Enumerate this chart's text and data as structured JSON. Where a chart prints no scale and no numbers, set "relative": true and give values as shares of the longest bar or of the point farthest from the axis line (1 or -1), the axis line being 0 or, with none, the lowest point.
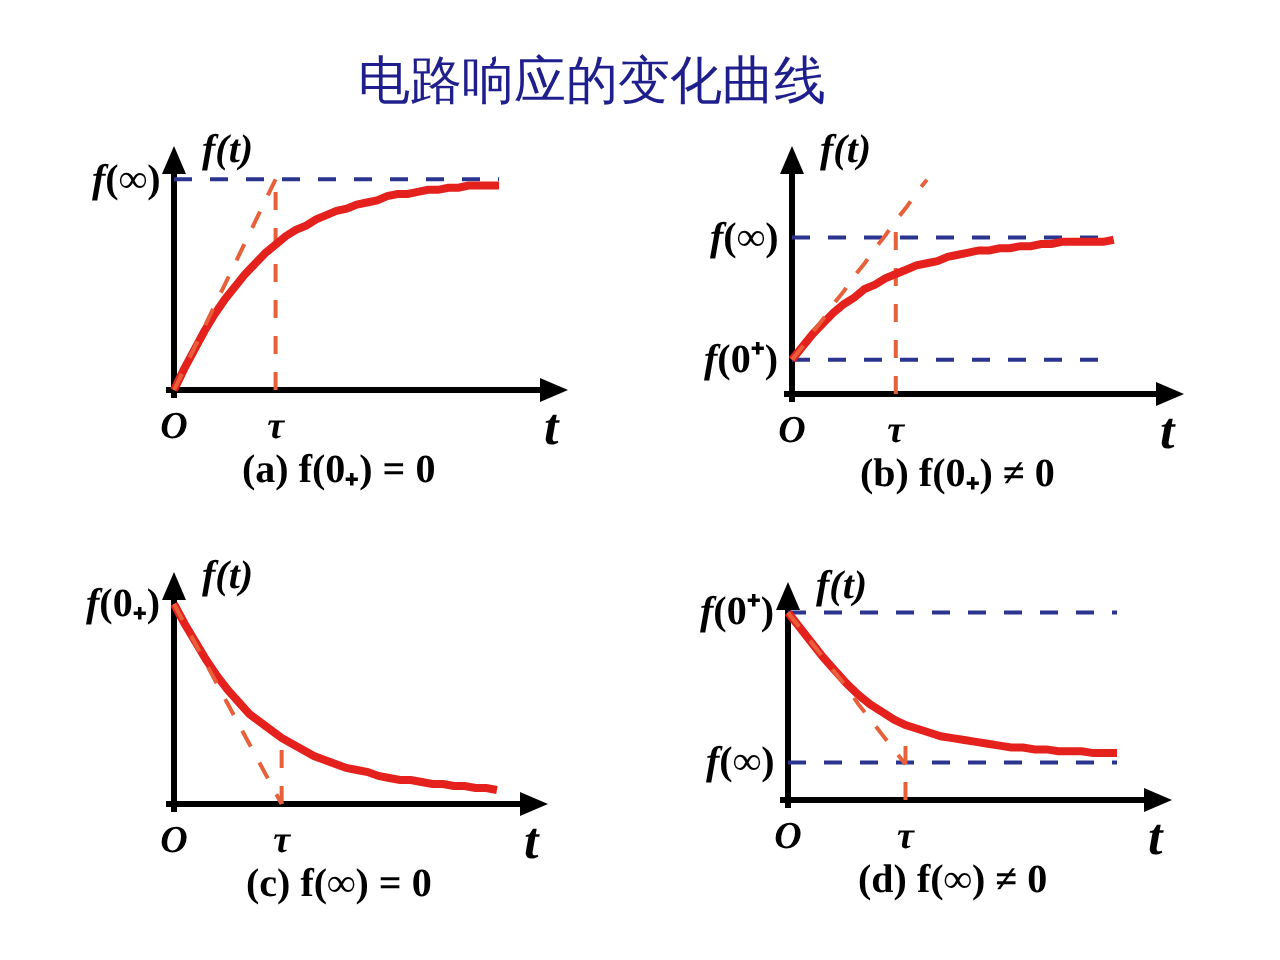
{
  "chart_data": [
    {
      "type": "line",
      "title": "电路响应的变化曲线",
      "xlabel": "t",
      "ylabel": "f(t)",
      "relative": true,
      "categories": [
        "O",
        null,
        null,
        null,
        null,
        null,
        null,
        null,
        null,
        null,
        "τ",
        null,
        null,
        null,
        null,
        null,
        null,
        null,
        null,
        null,
        null,
        null,
        null,
        null,
        null,
        null,
        null,
        null,
        null,
        null,
        null,
        null,
        null,
        null,
        null,
        null,
        null,
        null,
        null
      ],
      "series": [
        {
          "color": "#e4211c",
          "line_style": "solid",
          "values": [
            0,
            0.1,
            0.19,
            0.28,
            0.36,
            0.43,
            0.49,
            0.55,
            0.6,
            0.65,
            0.69,
            0.73,
            0.76,
            0.78,
            0.81,
            0.83,
            0.85,
            0.86,
            0.88,
            0.89,
            0.9,
            0.92,
            0.93,
            0.93,
            0.94,
            0.95,
            0.95,
            0.96,
            0.96,
            0.97,
            0.97,
            0.97,
            0.97,
            null,
            null,
            null,
            null,
            null,
            null
          ]
        },
        {
          "color": "#e8603a",
          "line_style": "dashed",
          "values": [
            0,
            0.1,
            0.2,
            0.3,
            0.4,
            0.5,
            0.6,
            0.7,
            0.8,
            0.9,
            1,
            null,
            null,
            null,
            null,
            null,
            null,
            null,
            null,
            null,
            null,
            null,
            null,
            null,
            null,
            null,
            null,
            null,
            null,
            null,
            null,
            null,
            null,
            null,
            null,
            null,
            null,
            null,
            null
          ]
        }
      ],
      "ref_lines": [
        {
          "axis": "y",
          "value": 1,
          "label": "f(∞)",
          "color": "#2b3590",
          "line_style": "dashed"
        },
        {
          "axis": "x",
          "value": "τ",
          "color": "#e8603a",
          "line_style": "dashed"
        }
      ],
      "annotations": [
        "(a) f(0₊) = 0"
      ]
    },
    {
      "type": "line",
      "xlabel": "t",
      "ylabel": "f(t)",
      "relative": true,
      "categories": [
        "O",
        null,
        null,
        null,
        null,
        null,
        null,
        null,
        null,
        null,
        "τ",
        null,
        null,
        null,
        null,
        null,
        null,
        null,
        null,
        null,
        null,
        null,
        null,
        null,
        null,
        null,
        null,
        null,
        null,
        null,
        null,
        null,
        null,
        null,
        null,
        null,
        null,
        null
      ],
      "series": [
        {
          "color": "#e4211c",
          "line_style": "solid",
          "values": [
            0.16,
            0.22,
            0.28,
            0.33,
            0.38,
            0.42,
            0.45,
            0.49,
            0.51,
            0.54,
            0.56,
            0.58,
            0.6,
            0.61,
            0.62,
            0.64,
            0.65,
            0.66,
            0.67,
            0.67,
            0.68,
            0.68,
            0.69,
            0.69,
            0.7,
            0.7,
            0.71,
            0.71,
            0.71,
            0.71,
            0.71,
            0.72,
            null,
            null,
            null,
            null,
            null,
            null
          ]
        },
        {
          "color": "#e8603a",
          "line_style": "dashed",
          "values": [
            0.16,
            0.22,
            0.29,
            0.35,
            0.42,
            0.48,
            0.55,
            0.61,
            0.68,
            0.74,
            0.81,
            0.87,
            0.94,
            1,
            null,
            null,
            null,
            null,
            null,
            null,
            null,
            null,
            null,
            null,
            null,
            null,
            null,
            null,
            null,
            null,
            null,
            null,
            null,
            null,
            null,
            null,
            null,
            null
          ]
        }
      ],
      "ref_lines": [
        {
          "axis": "y",
          "value": 0.73,
          "label": "f(∞)",
          "color": "#2b3590",
          "line_style": "dashed"
        },
        {
          "axis": "y",
          "value": 0.16,
          "label": "f(0⁺)",
          "color": "#2b3590",
          "line_style": "dashed"
        },
        {
          "axis": "x",
          "value": "τ",
          "color": "#e8603a",
          "line_style": "dashed"
        }
      ],
      "annotations": [
        "(b) f(0₊) ≠ 0"
      ]
    },
    {
      "type": "line",
      "xlabel": "t",
      "ylabel": "f(t)",
      "relative": true,
      "categories": [
        "O",
        null,
        null,
        null,
        null,
        null,
        null,
        null,
        null,
        null,
        "τ",
        null,
        null,
        null,
        null,
        null,
        null,
        null,
        null,
        null,
        null,
        null,
        null,
        null,
        null,
        null,
        null,
        null,
        null,
        null,
        null,
        null,
        null,
        null,
        null
      ],
      "series": [
        {
          "color": "#e4211c",
          "line_style": "solid",
          "values": [
            1,
            0.9,
            0.81,
            0.72,
            0.64,
            0.57,
            0.51,
            0.45,
            0.41,
            0.37,
            0.33,
            0.3,
            0.27,
            0.24,
            0.22,
            0.2,
            0.18,
            0.17,
            0.16,
            0.14,
            0.13,
            0.12,
            0.12,
            0.11,
            0.1,
            0.1,
            0.09,
            0.09,
            0.08,
            0.08,
            0.07,
            null,
            null,
            null,
            null
          ]
        },
        {
          "color": "#e8603a",
          "line_style": "dashed",
          "values": [
            1,
            0.9,
            0.8,
            0.7,
            0.6,
            0.5,
            0.4,
            0.3,
            0.2,
            0.1,
            0,
            null,
            null,
            null,
            null,
            null,
            null,
            null,
            null,
            null,
            null,
            null,
            null,
            null,
            null,
            null,
            null,
            null,
            null,
            null,
            null,
            null,
            null,
            null,
            null
          ]
        }
      ],
      "ref_lines": [
        {
          "axis": "x",
          "value": "τ",
          "color": "#e8603a",
          "line_style": "dashed"
        }
      ],
      "annotations": [
        {
          "text": "f(0₊)",
          "x": "O",
          "y": 1
        },
        "(c) f(∞) = 0"
      ]
    },
    {
      "type": "line",
      "xlabel": "t",
      "ylabel": "f(t)",
      "relative": true,
      "categories": [
        "O",
        null,
        null,
        null,
        null,
        null,
        null,
        null,
        null,
        null,
        "τ",
        null,
        null,
        null,
        null,
        null,
        null,
        null,
        null,
        null,
        null,
        null,
        null,
        null,
        null,
        null,
        null,
        null,
        null,
        null,
        null,
        null,
        null
      ],
      "series": [
        {
          "color": "#e4211c",
          "line_style": "solid",
          "values": [
            1,
            0.92,
            0.84,
            0.76,
            0.69,
            0.62,
            0.56,
            0.51,
            0.47,
            0.43,
            0.4,
            0.38,
            0.36,
            0.34,
            0.33,
            0.32,
            0.31,
            0.3,
            0.29,
            0.28,
            0.28,
            0.27,
            0.27,
            0.26,
            0.26,
            0.26,
            0.25,
            0.25,
            0.25,
            null,
            null,
            null,
            null
          ]
        },
        {
          "color": "#e8603a",
          "line_style": "dashed",
          "values": [
            1,
            0.92,
            0.84,
            0.76,
            0.68,
            0.6,
            0.51,
            0.43,
            0.35,
            0.27,
            0.19,
            null,
            null,
            null,
            null,
            null,
            null,
            null,
            null,
            null,
            null,
            null,
            null,
            null,
            null,
            null,
            null,
            null,
            null,
            null,
            null,
            null,
            null
          ]
        }
      ],
      "ref_lines": [
        {
          "axis": "y",
          "value": 1,
          "label": "f(0⁺)",
          "color": "#2b3590",
          "line_style": "dashed"
        },
        {
          "axis": "y",
          "value": 0.2,
          "label": "f(∞)",
          "color": "#2b3590",
          "line_style": "dashed"
        },
        {
          "axis": "x",
          "value": "τ",
          "color": "#e8603a",
          "line_style": "dashed"
        }
      ],
      "annotations": [
        "(d) f(∞) ≠ 0"
      ]
    }
  ]
}
